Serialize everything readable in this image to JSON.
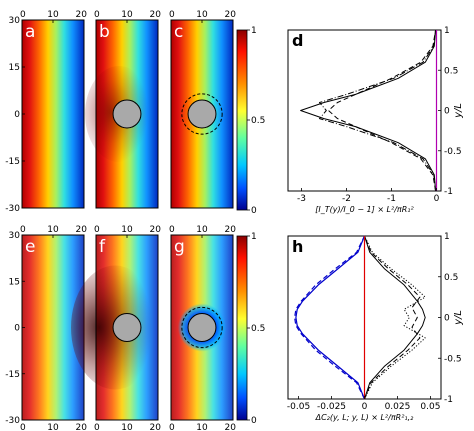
{
  "chart_data": [
    {
      "type": "heatmap",
      "panels": [
        {
          "id": "a",
          "label": "a",
          "obstacle": "none"
        },
        {
          "id": "b",
          "label": "b",
          "obstacle": "disk"
        },
        {
          "id": "c",
          "label": "c",
          "obstacle": "disk-with-dashed-ring"
        }
      ],
      "x_ticks": [
        0,
        10,
        20
      ],
      "y_ticks": [
        30,
        15,
        0,
        -15,
        -30
      ],
      "xlim": [
        0,
        20
      ],
      "ylim": [
        -30,
        30
      ],
      "disk_center": [
        10,
        0
      ],
      "disk_radius": 4.5,
      "ring_radius": 6.5,
      "colormap": "jet",
      "colorbar": {
        "ticks": [
          1,
          0.5,
          0
        ],
        "range": [
          0,
          1
        ]
      }
    },
    {
      "type": "heatmap",
      "panels": [
        {
          "id": "e",
          "label": "e",
          "obstacle": "none"
        },
        {
          "id": "f",
          "label": "f",
          "obstacle": "disk"
        },
        {
          "id": "g",
          "label": "g",
          "obstacle": "disk-with-dashed-ring"
        }
      ],
      "x_ticks": [
        0,
        10,
        20
      ],
      "y_ticks": [
        30,
        15,
        0,
        -15,
        -30
      ],
      "xlim": [
        0,
        20
      ],
      "ylim": [
        -30,
        30
      ],
      "disk_center": [
        10,
        0
      ],
      "disk_radius": 4.5,
      "ring_radius": 6.5,
      "colormap": "jet",
      "colorbar": {
        "ticks": [
          1,
          0.5,
          0
        ],
        "range": [
          0,
          1
        ]
      }
    },
    {
      "type": "line",
      "panel_label": "d",
      "xlabel": "[I_T(y)/I_0 − 1] × L²/πR₁²",
      "ylabel": "y/L",
      "x_ticks": [
        -3,
        -2,
        -1,
        0
      ],
      "y_ticks": [
        1,
        0.5,
        0,
        -0.5,
        -1
      ],
      "xlim": [
        -3.3,
        0.1
      ],
      "ylim": [
        -1,
        1
      ],
      "series": [
        {
          "style": "solid",
          "color": "#000000",
          "points": [
            [
              -0.02,
              -1
            ],
            [
              -0.05,
              -0.8
            ],
            [
              -0.25,
              -0.6
            ],
            [
              -0.85,
              -0.4
            ],
            [
              -1.8,
              -0.2
            ],
            [
              -2.5,
              -0.1
            ],
            [
              -3.02,
              0
            ],
            [
              -2.5,
              0.1
            ],
            [
              -1.8,
              0.2
            ],
            [
              -0.85,
              0.4
            ],
            [
              -0.25,
              0.6
            ],
            [
              -0.05,
              0.8
            ],
            [
              -0.02,
              1
            ]
          ]
        },
        {
          "style": "dashed",
          "color": "#000000",
          "points": [
            [
              -0.02,
              -1
            ],
            [
              -0.08,
              -0.8
            ],
            [
              -0.35,
              -0.6
            ],
            [
              -1.0,
              -0.4
            ],
            [
              -1.8,
              -0.2
            ],
            [
              -2.2,
              -0.1
            ],
            [
              -2.4,
              0
            ],
            [
              -2.2,
              0.1
            ],
            [
              -1.8,
              0.2
            ],
            [
              -1.0,
              0.4
            ],
            [
              -0.35,
              0.6
            ],
            [
              -0.08,
              0.8
            ],
            [
              -0.02,
              1
            ]
          ]
        },
        {
          "style": "dashdot",
          "color": "#000000",
          "points": [
            [
              -0.02,
              -1
            ],
            [
              -0.06,
              -0.8
            ],
            [
              -0.3,
              -0.6
            ],
            [
              -0.95,
              -0.4
            ],
            [
              -2.0,
              -0.2
            ],
            [
              -2.6,
              -0.1
            ],
            [
              -2.45,
              0
            ],
            [
              -2.6,
              0.1
            ],
            [
              -2.0,
              0.2
            ],
            [
              -0.95,
              0.4
            ],
            [
              -0.3,
              0.6
            ],
            [
              -0.06,
              0.8
            ],
            [
              -0.02,
              1
            ]
          ]
        },
        {
          "style": "solid",
          "color": "#b000b0",
          "points": [
            [
              0,
              -1
            ],
            [
              0,
              1
            ]
          ]
        }
      ]
    },
    {
      "type": "line",
      "panel_label": "h",
      "xlabel": "ΔC₂(y, L; y, L) × L²/πR²₁,₂",
      "ylabel": "y/L",
      "x_ticks": [
        -0.05,
        -0.025,
        0,
        0.025,
        0.05
      ],
      "x_tick_labels": [
        "-0.05",
        "-0.025",
        "0",
        "0.025",
        "0.05"
      ],
      "y_ticks": [
        1,
        0.5,
        0,
        -0.5,
        -1
      ],
      "xlim": [
        -0.058,
        0.058
      ],
      "ylim": [
        -1,
        1
      ],
      "series": [
        {
          "style": "solid",
          "color": "#0000cc",
          "points": [
            [
              0,
              -1
            ],
            [
              -0.005,
              -0.8
            ],
            [
              -0.02,
              -0.6
            ],
            [
              -0.035,
              -0.4
            ],
            [
              -0.047,
              -0.2
            ],
            [
              -0.051,
              -0.1
            ],
            [
              -0.052,
              0
            ],
            [
              -0.051,
              0.1
            ],
            [
              -0.047,
              0.2
            ],
            [
              -0.035,
              0.4
            ],
            [
              -0.02,
              0.6
            ],
            [
              -0.005,
              0.8
            ],
            [
              0,
              1
            ]
          ]
        },
        {
          "style": "dashed",
          "color": "#0000cc",
          "points": [
            [
              0,
              -1
            ],
            [
              -0.006,
              -0.8
            ],
            [
              -0.022,
              -0.6
            ],
            [
              -0.037,
              -0.4
            ],
            [
              -0.048,
              -0.2
            ],
            [
              -0.052,
              -0.1
            ],
            [
              -0.053,
              0
            ],
            [
              -0.052,
              0.1
            ],
            [
              -0.048,
              0.2
            ],
            [
              -0.037,
              0.4
            ],
            [
              -0.022,
              0.6
            ],
            [
              -0.006,
              0.8
            ],
            [
              0,
              1
            ]
          ]
        },
        {
          "style": "solid",
          "color": "#000000",
          "points": [
            [
              0,
              -1
            ],
            [
              0.004,
              -0.8
            ],
            [
              0.015,
              -0.6
            ],
            [
              0.03,
              -0.4
            ],
            [
              0.04,
              -0.2
            ],
            [
              0.044,
              -0.1
            ],
            [
              0.046,
              0
            ],
            [
              0.044,
              0.1
            ],
            [
              0.04,
              0.2
            ],
            [
              0.03,
              0.4
            ],
            [
              0.015,
              0.6
            ],
            [
              0.004,
              0.8
            ],
            [
              0,
              1
            ]
          ]
        },
        {
          "style": "dashed",
          "color": "#000000",
          "points": [
            [
              0,
              -1
            ],
            [
              0.005,
              -0.8
            ],
            [
              0.018,
              -0.6
            ],
            [
              0.033,
              -0.4
            ],
            [
              0.042,
              -0.25
            ],
            [
              0.036,
              -0.12
            ],
            [
              0.04,
              0
            ],
            [
              0.036,
              0.12
            ],
            [
              0.042,
              0.25
            ],
            [
              0.033,
              0.4
            ],
            [
              0.018,
              0.6
            ],
            [
              0.005,
              0.8
            ],
            [
              0,
              1
            ]
          ]
        },
        {
          "style": "dotted",
          "color": "#000000",
          "points": [
            [
              0,
              -1
            ],
            [
              0.006,
              -0.8
            ],
            [
              0.02,
              -0.6
            ],
            [
              0.036,
              -0.4
            ],
            [
              0.046,
              -0.25
            ],
            [
              0.03,
              -0.1
            ],
            [
              0.034,
              0
            ],
            [
              0.03,
              0.1
            ],
            [
              0.046,
              0.25
            ],
            [
              0.036,
              0.4
            ],
            [
              0.02,
              0.6
            ],
            [
              0.006,
              0.8
            ],
            [
              0,
              1
            ]
          ]
        },
        {
          "style": "solid",
          "color": "#e00000",
          "points": [
            [
              0,
              -1
            ],
            [
              0,
              1
            ]
          ]
        }
      ]
    }
  ]
}
